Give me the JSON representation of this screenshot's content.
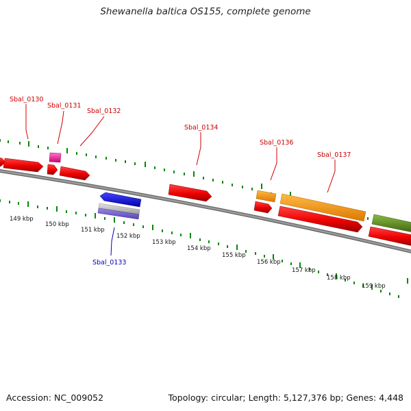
{
  "title": "Shewanella baltica OS155, complete genome",
  "footer": {
    "accession": "Accession: NC_009052",
    "summary": "Topology: circular; Length: 5,127,376 bp; Genes: 4,448"
  },
  "gene_labels": {
    "sbal_0130": "Sbal_0130",
    "sbal_0131": "Sbal_0131",
    "sbal_0132": "Sbal_0132",
    "sbal_0133": "Sbal_0133",
    "sbal_0134": "Sbal_0134",
    "sbal_0136": "Sbal_0136",
    "sbal_0137": "Sbal_0137"
  },
  "scale_labels": {
    "k149": "149 kbp",
    "k150": "150 kbp",
    "k151": "151 kbp",
    "k152": "152 kbp",
    "k153": "153 kbp",
    "k154": "154 kbp",
    "k155": "155 kbp",
    "k156": "156 kbp",
    "k157": "157 kbp",
    "k158": "158 kbp",
    "k159": "159 kbp"
  },
  "colors": {
    "cds": "#ee0000",
    "cds_dark": "#a80000",
    "rna": "#ff2299",
    "orange": "#ff9900",
    "olive": "#669922",
    "blue": "#1111ee",
    "backbone": "#888888",
    "tick": "#008800",
    "label_red": "#cc0000",
    "label_blue": "#0000bb"
  }
}
